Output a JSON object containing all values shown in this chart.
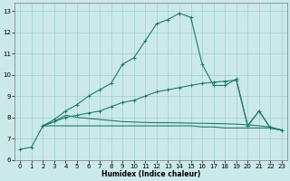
{
  "xlabel": "Humidex (Indice chaleur)",
  "bg_color": "#cce9e9",
  "line_color": "#1e7b6e",
  "grid_color": "#9ecece",
  "ylim": [
    6,
    13.4
  ],
  "xlim": [
    -0.5,
    23.5
  ],
  "yticks": [
    6,
    7,
    8,
    9,
    10,
    11,
    12,
    13
  ],
  "xticks": [
    0,
    1,
    2,
    3,
    4,
    5,
    6,
    7,
    8,
    9,
    10,
    11,
    12,
    13,
    14,
    15,
    16,
    17,
    18,
    19,
    20,
    21,
    22,
    23
  ],
  "series": [
    {
      "x": [
        0,
        1,
        2,
        3,
        4,
        5,
        6,
        7,
        8,
        9,
        10,
        11,
        12,
        13,
        14,
        15,
        16,
        17,
        18,
        19,
        20,
        21,
        22,
        23
      ],
      "y": [
        6.5,
        6.6,
        7.6,
        7.9,
        8.3,
        8.6,
        9.0,
        9.3,
        9.6,
        10.5,
        10.8,
        11.6,
        12.4,
        12.6,
        12.9,
        12.7,
        10.5,
        9.5,
        9.5,
        9.8,
        7.6,
        8.3,
        7.5,
        7.4
      ],
      "marker": true
    },
    {
      "x": [
        2,
        3,
        4,
        5,
        6,
        7,
        8,
        9,
        10,
        11,
        12,
        13,
        14,
        15,
        16,
        17,
        18,
        19,
        20,
        21,
        22,
        23
      ],
      "y": [
        7.6,
        7.8,
        8.0,
        8.1,
        8.2,
        8.3,
        8.5,
        8.7,
        8.8,
        9.0,
        9.2,
        9.3,
        9.4,
        9.5,
        9.6,
        9.65,
        9.7,
        9.75,
        7.6,
        8.3,
        7.5,
        7.4
      ],
      "marker": true
    },
    {
      "x": [
        2,
        3,
        4,
        5,
        6,
        7,
        8,
        9,
        10,
        11,
        12,
        13,
        14,
        15,
        16,
        17,
        18,
        19,
        20,
        21,
        22,
        23
      ],
      "y": [
        7.6,
        7.8,
        8.1,
        8.0,
        7.95,
        7.9,
        7.85,
        7.8,
        7.78,
        7.76,
        7.75,
        7.75,
        7.74,
        7.73,
        7.72,
        7.71,
        7.7,
        7.68,
        7.65,
        7.6,
        7.55,
        7.4
      ],
      "marker": false
    },
    {
      "x": [
        2,
        3,
        4,
        5,
        6,
        7,
        8,
        9,
        10,
        11,
        12,
        13,
        14,
        15,
        16,
        17,
        18,
        19,
        20,
        21,
        22,
        23
      ],
      "y": [
        7.6,
        7.6,
        7.6,
        7.6,
        7.6,
        7.6,
        7.6,
        7.6,
        7.6,
        7.6,
        7.6,
        7.6,
        7.6,
        7.6,
        7.55,
        7.55,
        7.5,
        7.5,
        7.5,
        7.5,
        7.5,
        7.4
      ],
      "marker": false
    }
  ]
}
